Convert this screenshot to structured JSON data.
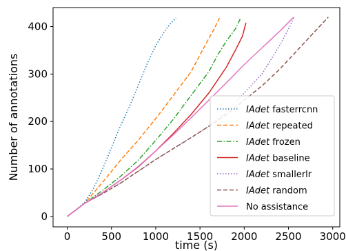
{
  "chart_data": {
    "type": "line",
    "xlabel": "time (s)",
    "ylabel": "Number of annotations",
    "xlim": [
      -160,
      3080
    ],
    "ylim": [
      -22,
      440
    ],
    "xticks": [
      0,
      500,
      1000,
      1500,
      2000,
      2500,
      3000
    ],
    "yticks": [
      0,
      100,
      200,
      300,
      400
    ],
    "grid": false,
    "legend_position": "lower right",
    "series": [
      {
        "name": "IAdet fasterrcnn",
        "name_italic": "IAdet",
        "name_rest": " fasterrcnn",
        "color": "#1f77b4",
        "style": "dotted",
        "points": [
          [
            0,
            0
          ],
          [
            100,
            14
          ],
          [
            200,
            30
          ],
          [
            300,
            60
          ],
          [
            400,
            100
          ],
          [
            500,
            145
          ],
          [
            600,
            190
          ],
          [
            700,
            230
          ],
          [
            800,
            275
          ],
          [
            900,
            320
          ],
          [
            1000,
            360
          ],
          [
            1100,
            390
          ],
          [
            1160,
            405
          ],
          [
            1230,
            418
          ]
        ]
      },
      {
        "name": "IAdet repeated",
        "name_italic": "IAdet",
        "name_rest": " repeated",
        "color": "#ff7f0e",
        "style": "dashed",
        "points": [
          [
            0,
            0
          ],
          [
            200,
            28
          ],
          [
            400,
            72
          ],
          [
            600,
            118
          ],
          [
            800,
            160
          ],
          [
            1000,
            206
          ],
          [
            1200,
            255
          ],
          [
            1400,
            305
          ],
          [
            1500,
            340
          ],
          [
            1600,
            375
          ],
          [
            1660,
            395
          ],
          [
            1720,
            418
          ]
        ]
      },
      {
        "name": "IAdet frozen",
        "name_italic": "IAdet",
        "name_rest": " frozen",
        "color": "#2ca02c",
        "style": "dashdot",
        "points": [
          [
            0,
            0
          ],
          [
            200,
            28
          ],
          [
            400,
            55
          ],
          [
            600,
            84
          ],
          [
            800,
            118
          ],
          [
            1000,
            160
          ],
          [
            1200,
            205
          ],
          [
            1400,
            255
          ],
          [
            1600,
            305
          ],
          [
            1700,
            340
          ],
          [
            1800,
            370
          ],
          [
            1900,
            395
          ],
          [
            1960,
            418
          ]
        ]
      },
      {
        "name": "IAdet baseline",
        "name_italic": "IAdet",
        "name_rest": " baseline",
        "color": "#d62728",
        "style": "solid",
        "points": [
          [
            0,
            0
          ],
          [
            200,
            28
          ],
          [
            400,
            50
          ],
          [
            600,
            76
          ],
          [
            800,
            104
          ],
          [
            1000,
            138
          ],
          [
            1200,
            175
          ],
          [
            1400,
            215
          ],
          [
            1600,
            260
          ],
          [
            1800,
            315
          ],
          [
            1900,
            350
          ],
          [
            1980,
            380
          ],
          [
            2020,
            408
          ]
        ]
      },
      {
        "name": "IAdet smallerlr",
        "name_italic": "IAdet",
        "name_rest": " smallerlr",
        "color": "#9467bd",
        "style": "dotted",
        "points": [
          [
            0,
            0
          ],
          [
            200,
            28
          ],
          [
            400,
            48
          ],
          [
            600,
            70
          ],
          [
            800,
            95
          ],
          [
            1000,
            120
          ],
          [
            1200,
            143
          ],
          [
            1400,
            166
          ],
          [
            1600,
            190
          ],
          [
            1800,
            220
          ],
          [
            2000,
            260
          ],
          [
            2200,
            300
          ],
          [
            2400,
            360
          ],
          [
            2500,
            395
          ],
          [
            2560,
            418
          ]
        ]
      },
      {
        "name": "IAdet random",
        "name_italic": "IAdet",
        "name_rest": " random",
        "color": "#8c564b",
        "style": "dashed",
        "points": [
          [
            0,
            0
          ],
          [
            200,
            28
          ],
          [
            400,
            48
          ],
          [
            600,
            70
          ],
          [
            800,
            95
          ],
          [
            1000,
            120
          ],
          [
            1200,
            143
          ],
          [
            1400,
            166
          ],
          [
            1600,
            190
          ],
          [
            1800,
            215
          ],
          [
            2000,
            245
          ],
          [
            2200,
            275
          ],
          [
            2400,
            310
          ],
          [
            2600,
            350
          ],
          [
            2800,
            390
          ],
          [
            2950,
            420
          ]
        ]
      },
      {
        "name": "No assistance",
        "name_italic": "",
        "name_rest": "No assistance",
        "color": "#e377c2",
        "style": "solid",
        "points": [
          [
            0,
            0
          ],
          [
            200,
            28
          ],
          [
            400,
            50
          ],
          [
            600,
            76
          ],
          [
            800,
            105
          ],
          [
            1000,
            138
          ],
          [
            1200,
            172
          ],
          [
            1400,
            208
          ],
          [
            1600,
            245
          ],
          [
            1800,
            282
          ],
          [
            2000,
            320
          ],
          [
            2200,
            355
          ],
          [
            2400,
            390
          ],
          [
            2560,
            420
          ]
        ]
      }
    ]
  }
}
